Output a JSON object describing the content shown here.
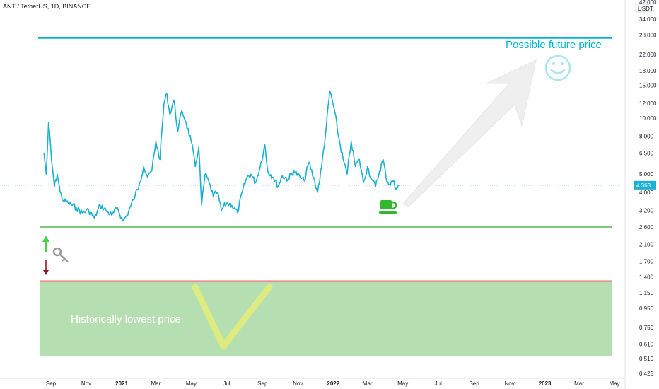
{
  "header": {
    "symbol": "ANT / TetherUS, 1D, BINANCE"
  },
  "price_scale": {
    "currency": "USDT",
    "current_price": "4.363"
  },
  "annotations": {
    "future": "Possible future price",
    "lowest": "Historically lowest price"
  },
  "colors": {
    "price_line": "#1ab0d1",
    "future_line": "#00b5d8",
    "support_line": "#7ec87a",
    "red_line": "#f08a8a",
    "zone_fill": "#b5dfb1",
    "arrow_up": "#4cd04c",
    "arrow_down": "#8b1a2a",
    "cup": "#2eb82e",
    "w_mark": "#e2ec7a",
    "current_tag": "#1ab0d1"
  },
  "icons": [
    "arrow-up-icon",
    "arrow-down-icon",
    "key-icon",
    "coffee-cup-icon",
    "smiley-icon",
    "big-arrow-icon",
    "w-mark-icon"
  ],
  "chart_data": {
    "type": "line",
    "title": "ANT / TetherUS, 1D, BINANCE",
    "y_scale": "log",
    "ylim": [
      0.425,
      42.0
    ],
    "y_ticks": [
      "42.000",
      "34.000",
      "28.000",
      "22.000",
      "18.000",
      "15.000",
      "12.000",
      "10.000",
      "8.000",
      "6.500",
      "5.000",
      "4.000",
      "3.200",
      "2.600",
      "2.100",
      "1.700",
      "1.400",
      "1.150",
      "0.950",
      "0.750",
      "0.610",
      "0.510",
      "0.425"
    ],
    "x_ticks": [
      {
        "label": "Sep",
        "date": "2020-09-01"
      },
      {
        "label": "Nov",
        "date": "2020-11-01"
      },
      {
        "label": "2021",
        "date": "2021-01-01"
      },
      {
        "label": "Mar",
        "date": "2021-03-01"
      },
      {
        "label": "May",
        "date": "2021-05-01"
      },
      {
        "label": "Jul",
        "date": "2021-07-01"
      },
      {
        "label": "Sep",
        "date": "2021-09-01"
      },
      {
        "label": "Nov",
        "date": "2021-11-01"
      },
      {
        "label": "2022",
        "date": "2022-01-01"
      },
      {
        "label": "Mar",
        "date": "2022-03-01"
      },
      {
        "label": "May",
        "date": "2022-05-01"
      },
      {
        "label": "Jul",
        "date": "2022-07-01"
      },
      {
        "label": "Sep",
        "date": "2022-09-01"
      },
      {
        "label": "Nov",
        "date": "2022-11-01"
      },
      {
        "label": "2023",
        "date": "2023-01-01"
      },
      {
        "label": "Mar",
        "date": "2023-03-01"
      },
      {
        "label": "May",
        "date": "2023-05-01"
      }
    ],
    "series": [
      {
        "values": [
          {
            "x": "2020-08-20",
            "y": 6.5
          },
          {
            "x": "2020-08-24",
            "y": 5.0
          },
          {
            "x": "2020-08-28",
            "y": 9.5
          },
          {
            "x": "2020-09-02",
            "y": 6.0
          },
          {
            "x": "2020-09-07",
            "y": 4.3
          },
          {
            "x": "2020-09-12",
            "y": 5.0
          },
          {
            "x": "2020-09-17",
            "y": 4.0
          },
          {
            "x": "2020-09-22",
            "y": 3.6
          },
          {
            "x": "2020-10-01",
            "y": 3.5
          },
          {
            "x": "2020-10-15",
            "y": 3.3
          },
          {
            "x": "2020-10-25",
            "y": 3.1
          },
          {
            "x": "2020-11-05",
            "y": 3.2
          },
          {
            "x": "2020-11-15",
            "y": 2.9
          },
          {
            "x": "2020-11-25",
            "y": 3.4
          },
          {
            "x": "2020-12-05",
            "y": 3.2
          },
          {
            "x": "2020-12-15",
            "y": 3.0
          },
          {
            "x": "2020-12-25",
            "y": 3.3
          },
          {
            "x": "2021-01-03",
            "y": 2.8
          },
          {
            "x": "2021-01-10",
            "y": 3.0
          },
          {
            "x": "2021-01-17",
            "y": 3.4
          },
          {
            "x": "2021-01-24",
            "y": 3.8
          },
          {
            "x": "2021-02-01",
            "y": 4.5
          },
          {
            "x": "2021-02-08",
            "y": 5.5
          },
          {
            "x": "2021-02-15",
            "y": 4.8
          },
          {
            "x": "2021-02-22",
            "y": 5.2
          },
          {
            "x": "2021-03-01",
            "y": 7.5
          },
          {
            "x": "2021-03-08",
            "y": 6.0
          },
          {
            "x": "2021-03-15",
            "y": 12.0
          },
          {
            "x": "2021-03-20",
            "y": 13.5
          },
          {
            "x": "2021-03-25",
            "y": 10.5
          },
          {
            "x": "2021-04-01",
            "y": 12.5
          },
          {
            "x": "2021-04-08",
            "y": 8.5
          },
          {
            "x": "2021-04-15",
            "y": 11.0
          },
          {
            "x": "2021-04-22",
            "y": 9.5
          },
          {
            "x": "2021-05-01",
            "y": 7.5
          },
          {
            "x": "2021-05-08",
            "y": 5.5
          },
          {
            "x": "2021-05-14",
            "y": 7.0
          },
          {
            "x": "2021-05-19",
            "y": 3.4
          },
          {
            "x": "2021-05-25",
            "y": 5.0
          },
          {
            "x": "2021-06-01",
            "y": 4.5
          },
          {
            "x": "2021-06-08",
            "y": 3.8
          },
          {
            "x": "2021-06-15",
            "y": 4.0
          },
          {
            "x": "2021-06-22",
            "y": 3.2
          },
          {
            "x": "2021-07-01",
            "y": 3.5
          },
          {
            "x": "2021-07-10",
            "y": 3.4
          },
          {
            "x": "2021-07-20",
            "y": 3.1
          },
          {
            "x": "2021-07-28",
            "y": 4.0
          },
          {
            "x": "2021-08-05",
            "y": 4.8
          },
          {
            "x": "2021-08-12",
            "y": 5.0
          },
          {
            "x": "2021-08-20",
            "y": 4.5
          },
          {
            "x": "2021-08-28",
            "y": 5.5
          },
          {
            "x": "2021-09-05",
            "y": 7.2
          },
          {
            "x": "2021-09-10",
            "y": 5.2
          },
          {
            "x": "2021-09-20",
            "y": 4.8
          },
          {
            "x": "2021-09-28",
            "y": 4.3
          },
          {
            "x": "2021-10-05",
            "y": 4.9
          },
          {
            "x": "2021-10-15",
            "y": 4.7
          },
          {
            "x": "2021-10-25",
            "y": 5.2
          },
          {
            "x": "2021-11-05",
            "y": 4.8
          },
          {
            "x": "2021-11-12",
            "y": 4.6
          },
          {
            "x": "2021-11-20",
            "y": 5.8
          },
          {
            "x": "2021-11-28",
            "y": 4.8
          },
          {
            "x": "2021-12-05",
            "y": 4.0
          },
          {
            "x": "2021-12-12",
            "y": 5.5
          },
          {
            "x": "2021-12-20",
            "y": 9.0
          },
          {
            "x": "2021-12-26",
            "y": 14.0
          },
          {
            "x": "2022-01-02",
            "y": 11.5
          },
          {
            "x": "2022-01-10",
            "y": 8.0
          },
          {
            "x": "2022-01-18",
            "y": 6.0
          },
          {
            "x": "2022-01-25",
            "y": 5.0
          },
          {
            "x": "2022-02-01",
            "y": 7.5
          },
          {
            "x": "2022-02-08",
            "y": 5.5
          },
          {
            "x": "2022-02-15",
            "y": 6.0
          },
          {
            "x": "2022-02-22",
            "y": 4.5
          },
          {
            "x": "2022-03-01",
            "y": 5.5
          },
          {
            "x": "2022-03-08",
            "y": 4.7
          },
          {
            "x": "2022-03-15",
            "y": 4.3
          },
          {
            "x": "2022-03-22",
            "y": 5.2
          },
          {
            "x": "2022-03-28",
            "y": 6.0
          },
          {
            "x": "2022-04-02",
            "y": 4.8
          },
          {
            "x": "2022-04-08",
            "y": 4.4
          },
          {
            "x": "2022-04-14",
            "y": 4.6
          },
          {
            "x": "2022-04-20",
            "y": 4.2
          },
          {
            "x": "2022-04-25",
            "y": 4.363
          }
        ]
      }
    ],
    "levels": [
      {
        "y": 27.0,
        "label": "future"
      },
      {
        "y": 2.6,
        "label": "support"
      },
      {
        "y": 1.33,
        "label": "lowest-top"
      },
      {
        "y": 0.525,
        "label": "lowest-bottom"
      }
    ],
    "current_price": 4.363
  }
}
